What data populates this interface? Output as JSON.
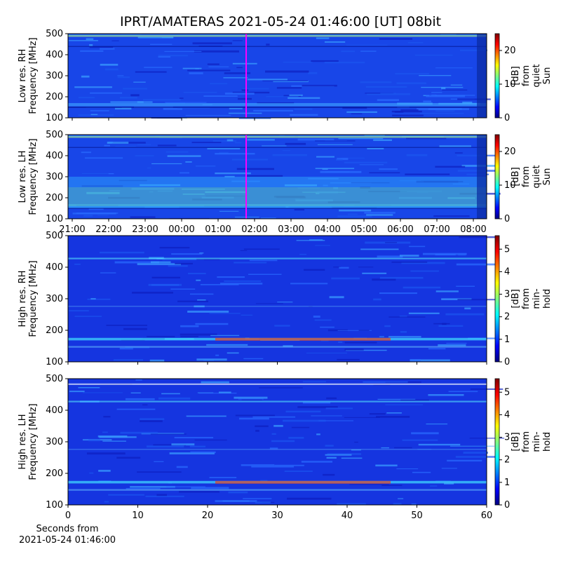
{
  "title": "IPRT/AMATERAS 2021-05-24 01:46:00 [UT]   08bit",
  "chart_data": [
    {
      "type": "heatmap",
      "ylabel": "Low res. RH\nFrequency [MHz]",
      "ylim": [
        100,
        500
      ],
      "yticks": [
        100,
        200,
        300,
        400,
        500
      ],
      "xlim": [
        20.885,
        32.365
      ],
      "marker_x": 25.77,
      "marker_color": "#ff00ff",
      "colorbar_label": "[dB] from\nquiet Sun",
      "clim": [
        0,
        25
      ],
      "cticks": [
        0,
        10,
        20
      ]
    },
    {
      "type": "heatmap",
      "ylabel": "Low res. LH\nFrequency [MHz]",
      "ylim": [
        100,
        500
      ],
      "yticks": [
        100,
        200,
        300,
        400,
        500
      ],
      "xlim": [
        20.885,
        32.365
      ],
      "marker_x": 25.77,
      "marker_color": "#ff00ff",
      "xticks": [
        {
          "value": 21,
          "label": "21:00"
        },
        {
          "value": 22,
          "label": "22:00"
        },
        {
          "value": 23,
          "label": "23:00"
        },
        {
          "value": 24,
          "label": "00:00"
        },
        {
          "value": 25,
          "label": "01:00"
        },
        {
          "value": 26,
          "label": "02:00"
        },
        {
          "value": 27,
          "label": "03:00"
        },
        {
          "value": 28,
          "label": "04:00"
        },
        {
          "value": 29,
          "label": "05:00"
        },
        {
          "value": 30,
          "label": "06:00"
        },
        {
          "value": 31,
          "label": "07:00"
        },
        {
          "value": 32,
          "label": "08:00"
        }
      ],
      "colorbar_label": "[dB] from\nquiet Sun",
      "clim": [
        0,
        25
      ],
      "cticks": [
        0,
        10,
        20
      ]
    },
    {
      "type": "heatmap",
      "ylabel": "High res. RH\nFrequency [MHz]",
      "ylim": [
        100,
        500
      ],
      "yticks": [
        100,
        200,
        300,
        400,
        500
      ],
      "xlim": [
        0,
        60
      ],
      "colorbar_label": "[dB] from min-hold",
      "clim": [
        0,
        5.6
      ],
      "cticks": [
        0,
        1,
        2,
        3,
        4,
        5
      ]
    },
    {
      "type": "heatmap",
      "ylabel": "High res. LH\nFrequency [MHz]",
      "ylim": [
        100,
        500
      ],
      "yticks": [
        100,
        200,
        300,
        400,
        500
      ],
      "xlim": [
        0,
        60
      ],
      "xticks": [
        0,
        10,
        20,
        30,
        40,
        50,
        60
      ],
      "xlabel": "Seconds from\n2021-05-24 01:46:00",
      "colorbar_label": "[dB] from min-hold",
      "clim": [
        0,
        5.6
      ],
      "cticks": [
        0,
        1,
        2,
        3,
        4,
        5
      ]
    }
  ]
}
